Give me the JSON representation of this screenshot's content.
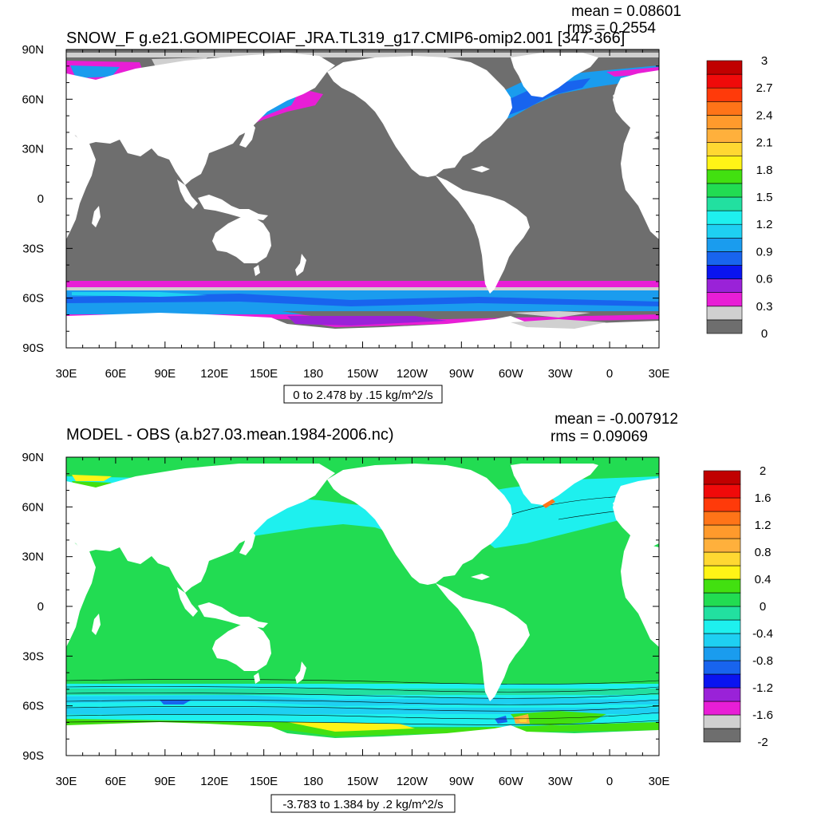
{
  "chart_data": [
    {
      "type": "heatmap",
      "title": "SNOW_F g.e21.GOMIPECOIAF_JRA.TL319_g17.CMIP6-omip2.001 [347-366]",
      "stats": {
        "mean_text": "mean = 0.08601",
        "rms_text": "rms = 0.2554"
      },
      "x_ticks": [
        "30E",
        "60E",
        "90E",
        "120E",
        "150E",
        "180",
        "150W",
        "120W",
        "90W",
        "60W",
        "30W",
        "0",
        "30E"
      ],
      "y_ticks": [
        "90N",
        "60N",
        "30N",
        "0",
        "30S",
        "60S",
        "90S"
      ],
      "range_label": "0 to 2.478 by .15 kg/m^2/s",
      "colorbar": {
        "colors": [
          "#6e6e6e",
          "#d0d0d0",
          "#e81ed6",
          "#9a22d8",
          "#0a14f0",
          "#1864ee",
          "#1a9cee",
          "#1ed0f2",
          "#1ef0ee",
          "#22e0a0",
          "#22dc52",
          "#42e010",
          "#fff416",
          "#ffd832",
          "#ffb03c",
          "#ff9a2c",
          "#ff7418",
          "#ff3a0a",
          "#f00a0a",
          "#c00000"
        ],
        "labels": [
          "0",
          "0.3",
          "0.6",
          "0.9",
          "1.2",
          "1.5",
          "1.8",
          "2.1",
          "2.4",
          "2.7",
          "3"
        ]
      },
      "field": "snowfall over ocean; land masked white; ice-free ocean dark gray"
    },
    {
      "type": "heatmap",
      "title": "MODEL - OBS (a.b27.03.mean.1984-2006.nc)",
      "stats": {
        "mean_text": "mean = -0.007912",
        "rms_text": "rms = 0.09069"
      },
      "x_ticks": [
        "30E",
        "60E",
        "90E",
        "120E",
        "150E",
        "180",
        "150W",
        "120W",
        "90W",
        "60W",
        "30W",
        "0",
        "30E"
      ],
      "y_ticks": [
        "90N",
        "60N",
        "30N",
        "0",
        "30S",
        "60S",
        "90S"
      ],
      "range_label": "-3.783 to 1.384 by .2 kg/m^2/s",
      "colorbar": {
        "colors": [
          "#6e6e6e",
          "#d0d0d0",
          "#e81ed6",
          "#9a22d8",
          "#0a14f0",
          "#1864ee",
          "#1a9cee",
          "#1ed0f2",
          "#1ef0ee",
          "#22e0a0",
          "#22dc52",
          "#42e010",
          "#fff416",
          "#ffd832",
          "#ffb03c",
          "#ff9a2c",
          "#ff7418",
          "#ff3a0a",
          "#f00a0a",
          "#c00000"
        ],
        "labels": [
          "-2",
          "-1.6",
          "-1.2",
          "-0.8",
          "-0.4",
          "0",
          "0.4",
          "0.8",
          "1.2",
          "1.6",
          "2"
        ]
      },
      "field": "model minus observations; near-zero green over ocean, cyan/blue bands in Southern Ocean"
    }
  ]
}
